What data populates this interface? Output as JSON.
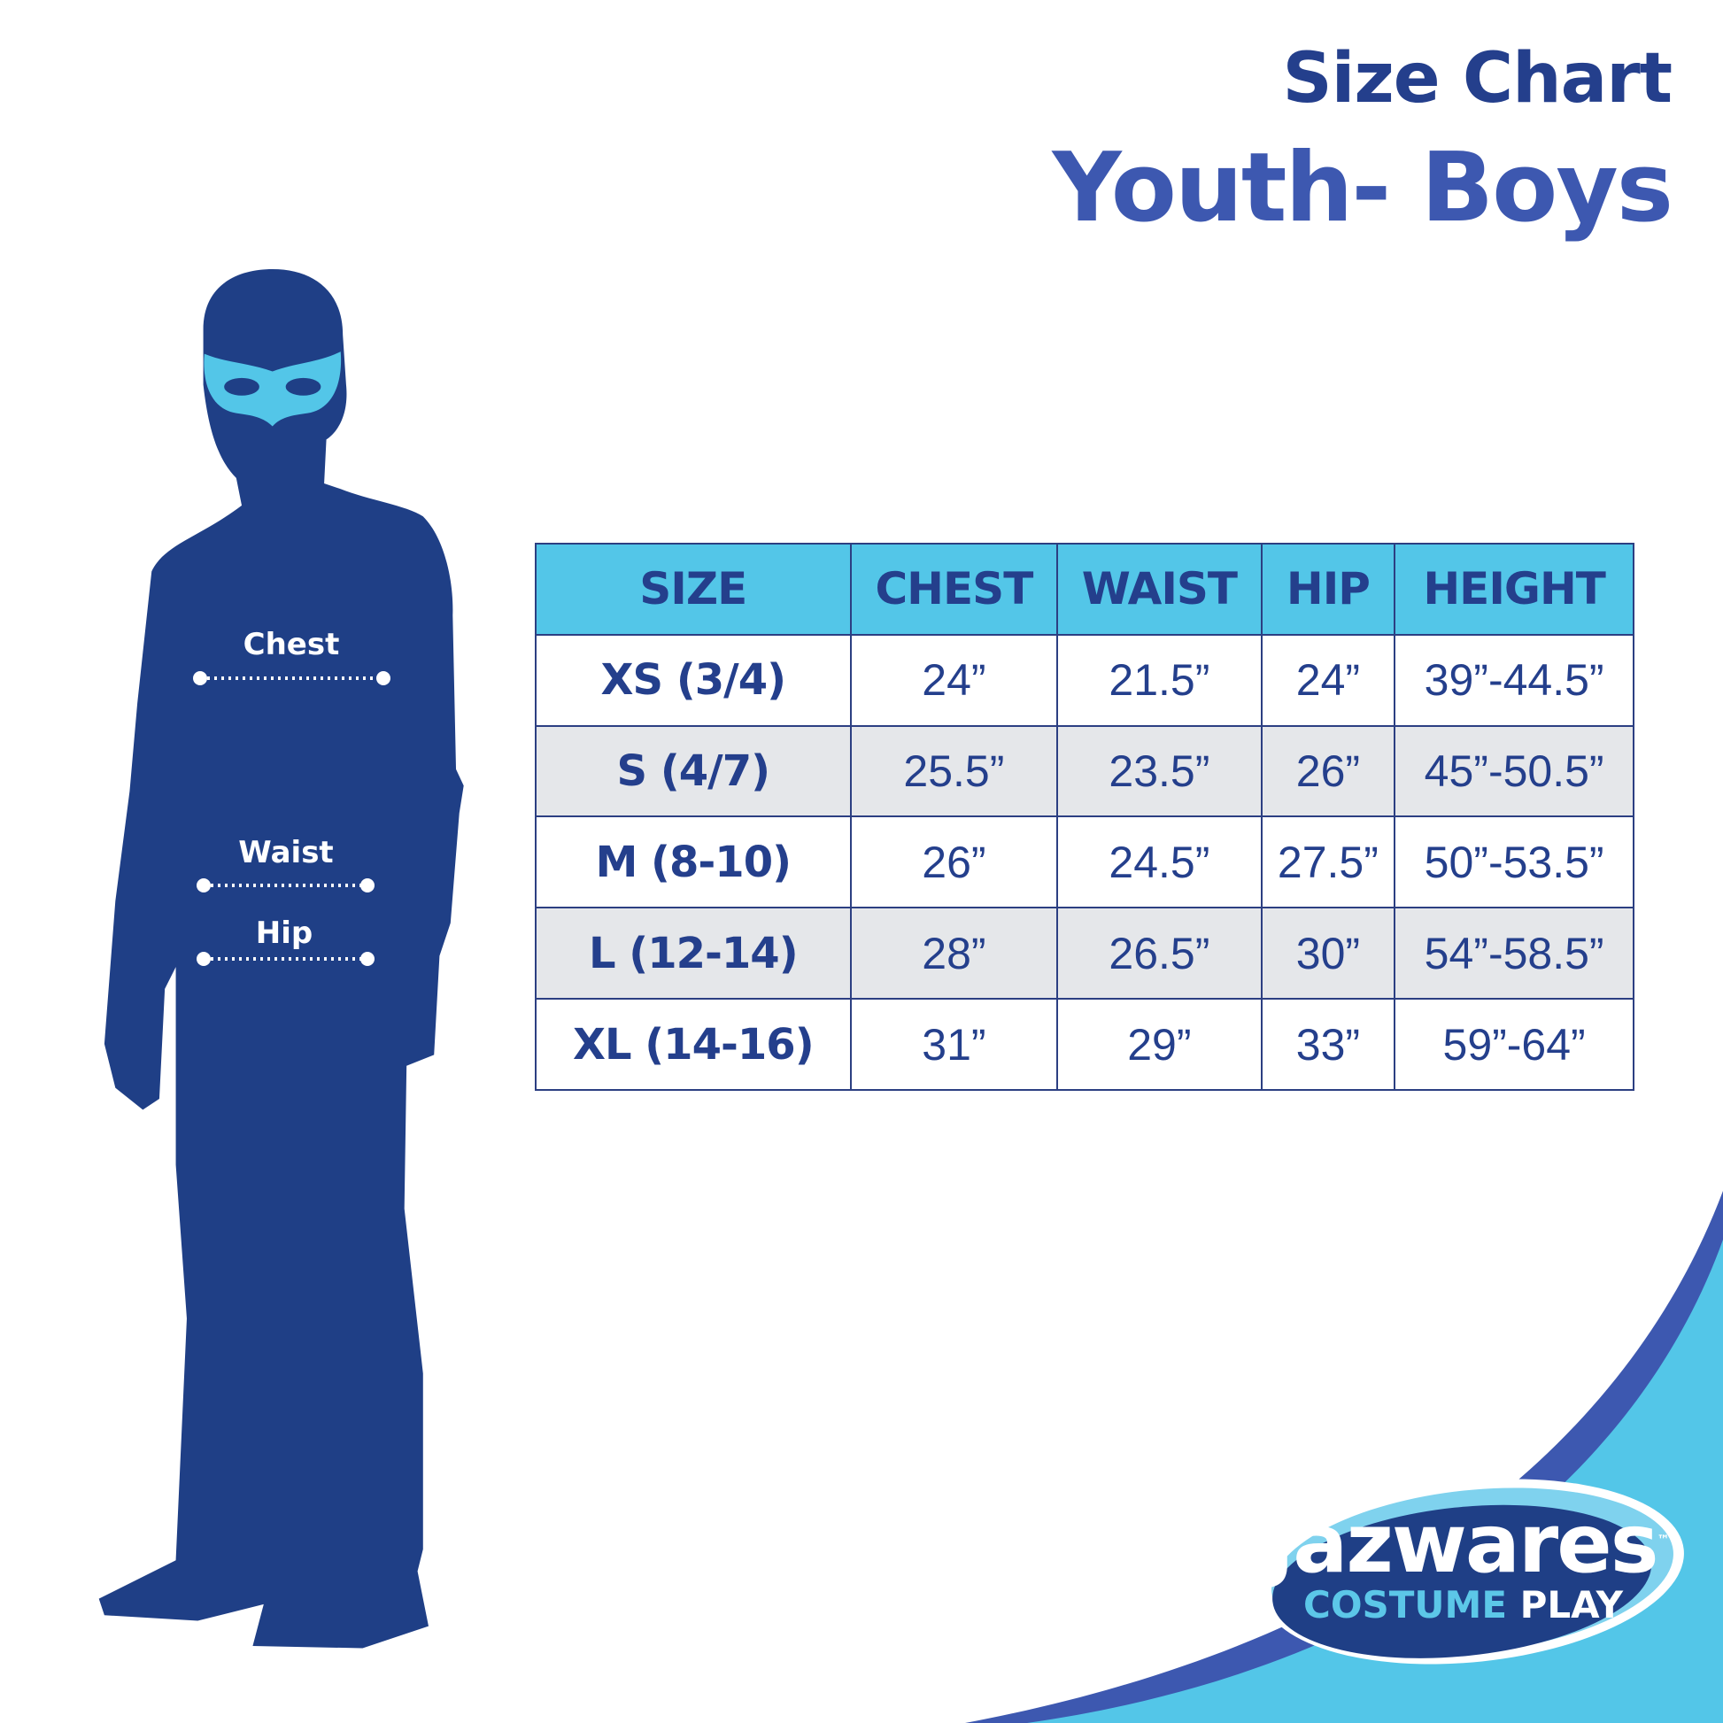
{
  "header": {
    "title": "Size Chart",
    "subtitle": "Youth- Boys"
  },
  "figure": {
    "labels": {
      "chest": "Chest",
      "waist": "Waist",
      "hip": "Hip"
    }
  },
  "colors": {
    "navy": "#1f3f86",
    "cyan": "#53c6e8",
    "title": "#243f8c",
    "row_alt": "#e5e7ea",
    "accent": "#3d58b0"
  },
  "table": {
    "headers": [
      "SIZE",
      "CHEST",
      "WAIST",
      "HIP",
      "HEIGHT"
    ],
    "rows": [
      [
        "XS (3/4)",
        "24”",
        "21.5”",
        "24”",
        "39”-44.5”"
      ],
      [
        "S (4/7)",
        "25.5”",
        "23.5”",
        "26”",
        "45”-50.5”"
      ],
      [
        "M (8-10)",
        "26”",
        "24.5”",
        "27.5”",
        "50”-53.5”"
      ],
      [
        "L (12-14)",
        "28”",
        "26.5”",
        "30”",
        "54”-58.5”"
      ],
      [
        "XL (14-16)",
        "31”",
        "29”",
        "33”",
        "59”-64”"
      ]
    ]
  },
  "logo": {
    "brand": "Jazwares",
    "line2a": "COSTUME",
    "line2b": "PLAY",
    "tm": "™"
  }
}
